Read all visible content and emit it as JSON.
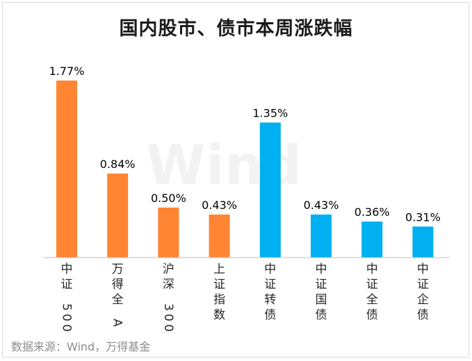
{
  "chart_data": {
    "type": "bar",
    "title": "国内股市、债市本周涨跌幅",
    "categories": [
      "中证500",
      "万得全A",
      "沪深300",
      "上证指数",
      "中证转债",
      "中证国债",
      "中证全债",
      "中证企债"
    ],
    "values": [
      1.77,
      0.84,
      0.5,
      0.43,
      1.35,
      0.43,
      0.36,
      0.31
    ],
    "data_labels": [
      "1.77%",
      "0.84%",
      "0.50%",
      "0.43%",
      "1.35%",
      "0.43%",
      "0.36%",
      "0.31%"
    ],
    "series_colors": [
      "#FF8533",
      "#FF8533",
      "#FF8533",
      "#FF8533",
      "#00B0F0",
      "#00B0F0",
      "#00B0F0",
      "#00B0F0"
    ],
    "ylim": [
      0,
      1.77
    ],
    "grid": false,
    "xlabel": "",
    "ylabel": ""
  },
  "watermark": "Wind",
  "source": "数据来源：Wind，万得基金"
}
